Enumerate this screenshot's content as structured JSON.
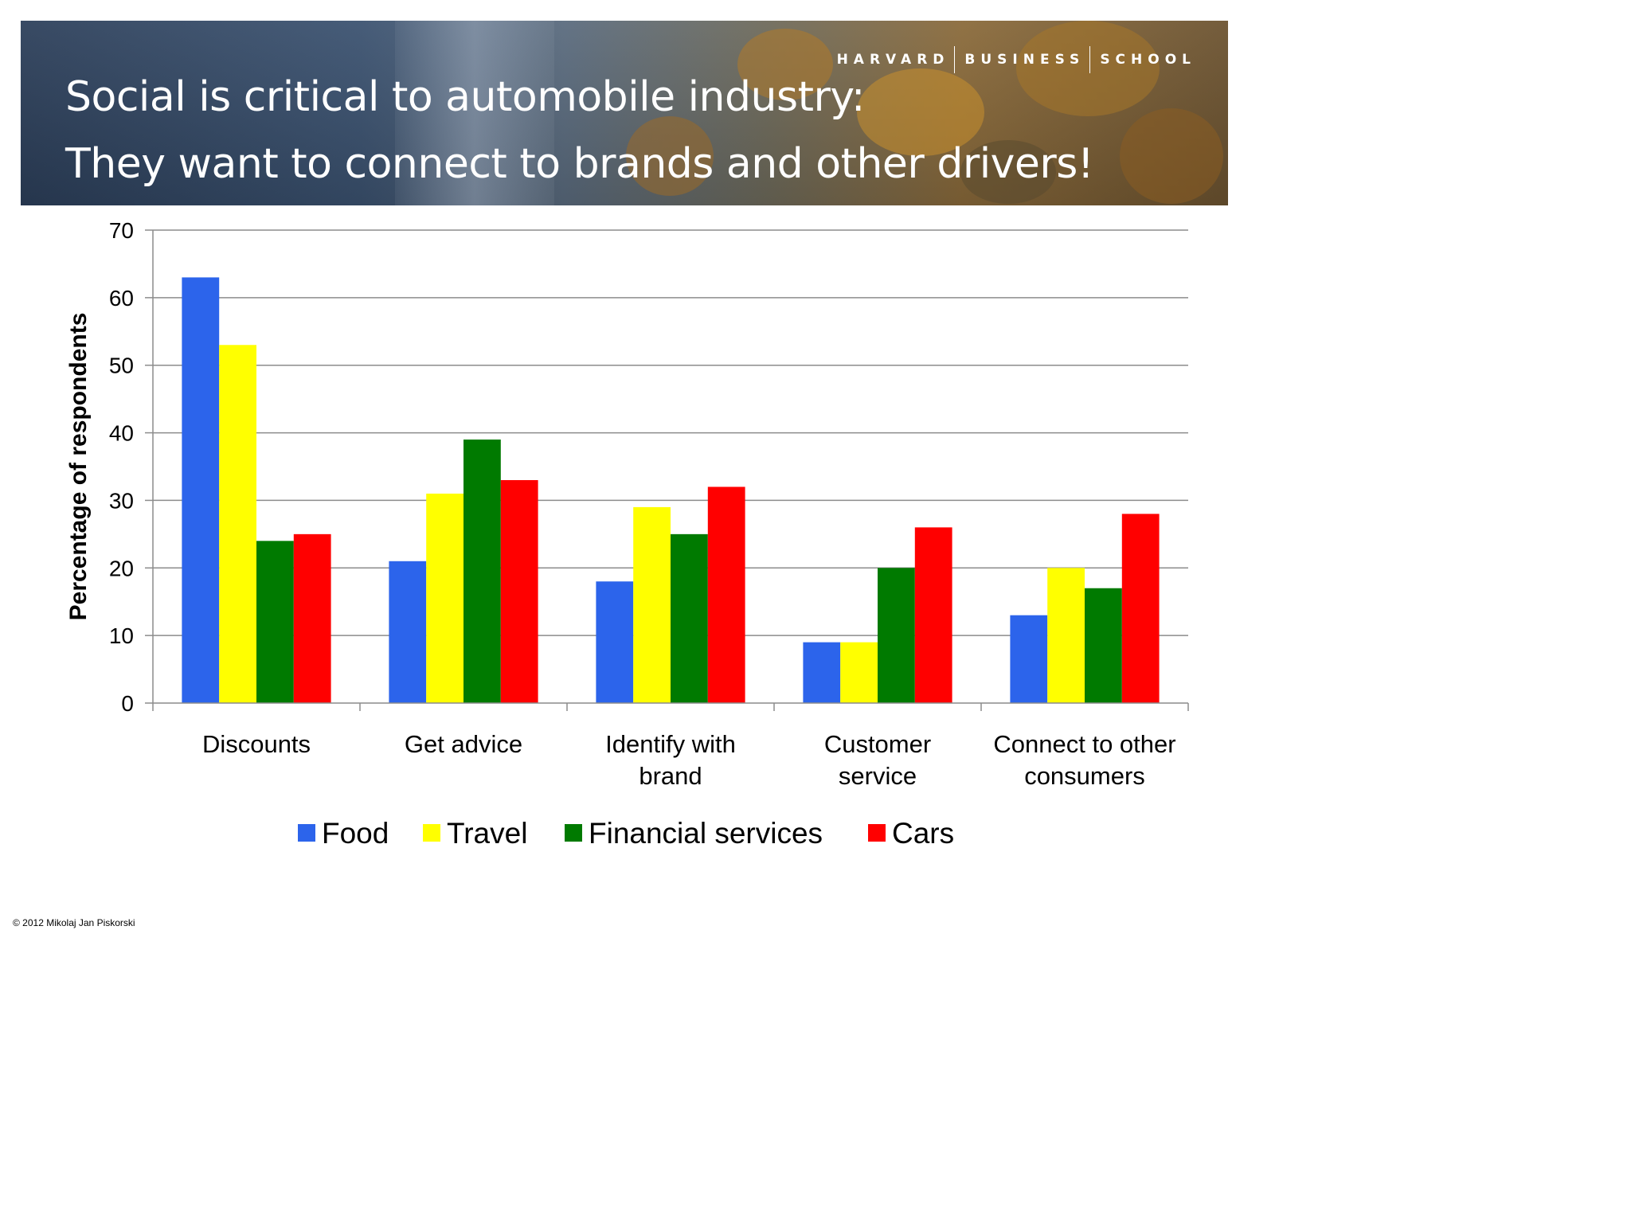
{
  "slide": {
    "branding": [
      "HARVARD",
      "BUSINESS",
      "SCHOOL"
    ],
    "title_line1": "Social is critical to automobile industry:",
    "title_line2": "They want to connect to brands and other drivers!",
    "copyright": "© 2012 Mikolaj Jan Piskorski"
  },
  "chart_data": {
    "type": "bar",
    "title": "",
    "xlabel": "",
    "ylabel": "Percentage of respondents",
    "ylim": [
      0,
      70
    ],
    "yticks": [
      0,
      10,
      20,
      30,
      40,
      50,
      60,
      70
    ],
    "grid": true,
    "legend": "bottom",
    "categories": [
      [
        "Discounts"
      ],
      [
        "Get advice"
      ],
      [
        "Identify with",
        "brand"
      ],
      [
        "Customer",
        "service"
      ],
      [
        "Connect to other",
        "consumers"
      ]
    ],
    "series": [
      {
        "name": "Food",
        "color": "#2c64eb",
        "values": [
          63,
          21,
          18,
          9,
          13
        ]
      },
      {
        "name": "Travel",
        "color": "#ffff00",
        "values": [
          53,
          31,
          29,
          9,
          20
        ]
      },
      {
        "name": "Financial services",
        "color": "#007a00",
        "values": [
          24,
          39,
          25,
          20,
          17
        ]
      },
      {
        "name": "Cars",
        "color": "#ff0000",
        "values": [
          25,
          33,
          32,
          26,
          28
        ]
      }
    ]
  }
}
